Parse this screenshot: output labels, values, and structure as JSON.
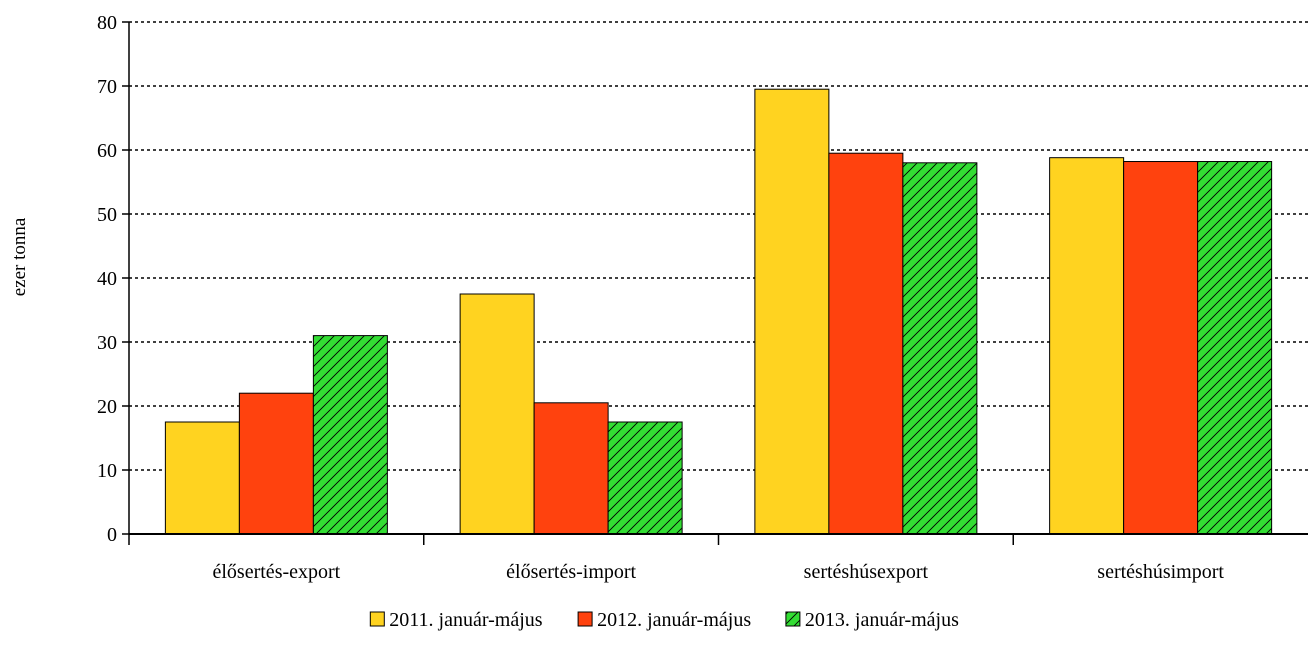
{
  "chart_data": {
    "type": "bar",
    "title": "",
    "xlabel": "",
    "ylabel": "ezer tonna",
    "ylim": [
      0,
      80
    ],
    "ytick_step": 10,
    "grid": "horizontal dashed",
    "legend_position": "bottom",
    "categories": [
      "élősertés-export",
      "élősertés-import",
      "sertéshúsexport",
      "sertéshúsimport"
    ],
    "series": [
      {
        "name": "2011. január-május",
        "values": [
          17.5,
          37.5,
          69.5,
          58.8
        ],
        "color": "#FFD320",
        "pattern": "solid"
      },
      {
        "name": "2012. január-május",
        "values": [
          22.0,
          20.5,
          59.5,
          58.2
        ],
        "color": "#FF420E",
        "pattern": "solid"
      },
      {
        "name": "2013. január-május",
        "values": [
          31.0,
          17.5,
          58.0,
          58.2
        ],
        "color": "#33DD33",
        "pattern": "diagonal-hatch"
      }
    ]
  }
}
